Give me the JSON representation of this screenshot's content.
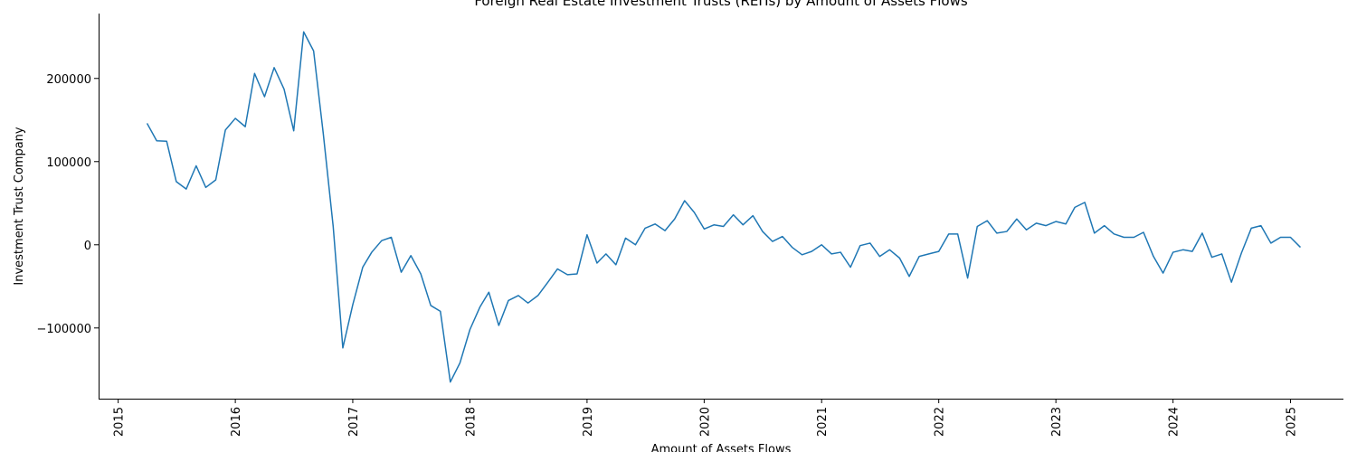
{
  "chart_data": {
    "type": "line",
    "title": "Foreign Real Estate Investment Trusts (REITs) by Amount of Assets Flows",
    "xlabel": "Amount of Assets Flows",
    "ylabel": "Investment Trust Company",
    "xlim": [
      "2014-11-01",
      "2025-06-15"
    ],
    "ylim": [
      -185000,
      278000
    ],
    "x_ticks": [
      "2015",
      "2016",
      "2017",
      "2018",
      "2019",
      "2020",
      "2021",
      "2022",
      "2023",
      "2024",
      "2025"
    ],
    "y_ticks": [
      -100000,
      0,
      100000,
      200000
    ],
    "y_tick_labels": [
      "−100000",
      "0",
      "100000",
      "200000"
    ],
    "grid": false,
    "legend": "none",
    "series": [
      {
        "color": "#1f77b4",
        "x": [
          "2015-04-01",
          "2015-05-01",
          "2015-06-01",
          "2015-07-01",
          "2015-08-01",
          "2015-09-01",
          "2015-10-01",
          "2015-11-01",
          "2015-12-01",
          "2016-01-01",
          "2016-02-01",
          "2016-03-01",
          "2016-04-01",
          "2016-05-01",
          "2016-06-01",
          "2016-07-01",
          "2016-08-01",
          "2016-09-01",
          "2016-10-01",
          "2016-11-01",
          "2016-12-01",
          "2017-01-01",
          "2017-02-01",
          "2017-03-01",
          "2017-04-01",
          "2017-05-01",
          "2017-06-01",
          "2017-07-01",
          "2017-08-01",
          "2017-09-01",
          "2017-10-01",
          "2017-11-01",
          "2017-12-01",
          "2018-01-01",
          "2018-02-01",
          "2018-03-01",
          "2018-04-01",
          "2018-05-01",
          "2018-06-01",
          "2018-07-01",
          "2018-08-01",
          "2018-09-01",
          "2018-10-01",
          "2018-11-01",
          "2018-12-01",
          "2019-01-01",
          "2019-02-01",
          "2019-03-01",
          "2019-04-01",
          "2019-05-01",
          "2019-06-01",
          "2019-07-01",
          "2019-08-01",
          "2019-09-01",
          "2019-10-01",
          "2019-11-01",
          "2019-12-01",
          "2020-01-01",
          "2020-02-01",
          "2020-03-01",
          "2020-04-01",
          "2020-05-01",
          "2020-06-01",
          "2020-07-01",
          "2020-08-01",
          "2020-09-01",
          "2020-10-01",
          "2020-11-01",
          "2020-12-01",
          "2021-01-01",
          "2021-02-01",
          "2021-03-01",
          "2021-04-01",
          "2021-05-01",
          "2021-06-01",
          "2021-07-01",
          "2021-08-01",
          "2021-09-01",
          "2021-10-01",
          "2021-11-01",
          "2021-12-01",
          "2022-01-01",
          "2022-02-01",
          "2022-03-01",
          "2022-04-01",
          "2022-05-01",
          "2022-06-01",
          "2022-07-01",
          "2022-08-01",
          "2022-09-01",
          "2022-10-01",
          "2022-11-01",
          "2022-12-01",
          "2023-01-01",
          "2023-02-01",
          "2023-03-01",
          "2023-04-01",
          "2023-05-01",
          "2023-06-01",
          "2023-07-01",
          "2023-08-01",
          "2023-09-01",
          "2023-10-01",
          "2023-11-01",
          "2023-12-01",
          "2024-01-01",
          "2024-02-01",
          "2024-03-01",
          "2024-04-01",
          "2024-05-01",
          "2024-06-01",
          "2024-07-01",
          "2024-08-01",
          "2024-09-01",
          "2024-10-01",
          "2024-11-01",
          "2024-12-01",
          "2025-01-01",
          "2025-02-01"
        ],
        "values": [
          146000,
          125000,
          124500,
          76000,
          67000,
          95000,
          69000,
          78000,
          138000,
          152000,
          142000,
          206000,
          178000,
          213000,
          187000,
          137000,
          256000,
          233000,
          134000,
          22000,
          -124000,
          -72000,
          -27000,
          -9000,
          5000,
          9000,
          -33000,
          -13000,
          -35000,
          -73000,
          -80000,
          -165000,
          -142000,
          -102000,
          -75000,
          -57000,
          -97000,
          -67000,
          -61000,
          -70000,
          -61000,
          -45000,
          -29000,
          -36000,
          -35000,
          12000,
          -22000,
          -11000,
          -24000,
          8000,
          0,
          20000,
          25000,
          17000,
          31000,
          53000,
          39000,
          19000,
          24000,
          22000,
          36000,
          24000,
          35000,
          16000,
          4000,
          10000,
          -3000,
          -12000,
          -8000,
          0,
          -11000,
          -9000,
          -27000,
          -1000,
          2000,
          -14000,
          -6000,
          -16000,
          -38000,
          -14000,
          -11000,
          -8000,
          13000,
          13000,
          -40000,
          22000,
          29000,
          14000,
          16000,
          31000,
          18000,
          26000,
          23000,
          28000,
          25000,
          45000,
          51000,
          14000,
          23000,
          13000,
          9000,
          9000,
          15000,
          -14000,
          -34000,
          -9000,
          -6000,
          -8000,
          14000,
          -15000,
          -11000,
          -45000,
          -10000,
          20000,
          23000,
          2000,
          9000,
          9000,
          -3000
        ]
      }
    ]
  }
}
